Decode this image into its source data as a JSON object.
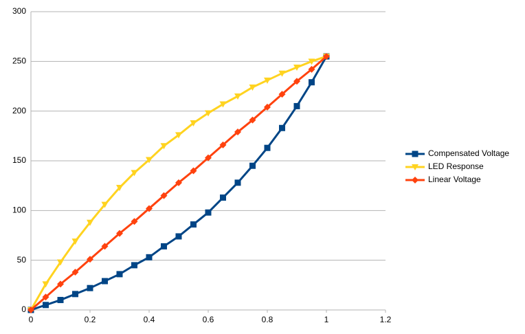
{
  "chart_data": {
    "type": "line",
    "x": [
      0,
      0.05,
      0.1,
      0.15,
      0.2,
      0.25,
      0.3,
      0.35,
      0.4,
      0.45,
      0.5,
      0.55,
      0.6,
      0.65,
      0.7,
      0.75,
      0.8,
      0.85,
      0.9,
      0.95,
      1
    ],
    "series": [
      {
        "name": "Compensated Voltage",
        "color": "#004586",
        "marker": "square",
        "values": [
          0,
          5,
          10,
          16,
          22,
          29,
          36,
          45,
          53,
          64,
          74,
          86,
          98,
          113,
          128,
          145,
          163,
          183,
          205,
          229,
          255
        ]
      },
      {
        "name": "LED Response",
        "color": "#ffd320",
        "marker": "triangle-down",
        "values": [
          0,
          26,
          48,
          69,
          88,
          106,
          123,
          138,
          151,
          165,
          176,
          188,
          198,
          207,
          215,
          224,
          231,
          238,
          244,
          250,
          255
        ]
      },
      {
        "name": "Linear Voltage",
        "color": "#ff420e",
        "marker": "diamond",
        "values": [
          0,
          13,
          26,
          38,
          51,
          64,
          77,
          89,
          102,
          115,
          128,
          140,
          153,
          166,
          179,
          191,
          204,
          217,
          230,
          242,
          255
        ]
      }
    ],
    "xlim": [
      0,
      1.2
    ],
    "xticks": [
      0,
      0.2,
      0.4,
      0.6,
      0.8,
      1,
      1.2
    ],
    "ylim": [
      0,
      300
    ],
    "yticks": [
      0,
      50,
      100,
      150,
      200,
      250,
      300
    ],
    "grid": true,
    "legend": "right"
  }
}
